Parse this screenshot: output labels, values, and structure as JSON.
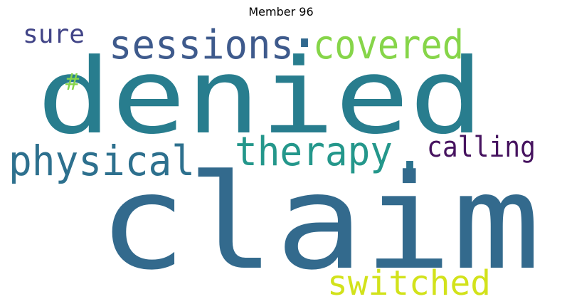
{
  "title": "Member 96",
  "words": [
    {
      "text": "claim",
      "color": "#336a8d"
    },
    {
      "text": "denied",
      "color": "#287d8e"
    },
    {
      "text": "sessions",
      "color": "#3e5a8c"
    },
    {
      "text": "covered",
      "color": "#86d549"
    },
    {
      "text": "physical",
      "color": "#2d708e"
    },
    {
      "text": "therapy",
      "color": "#24978b"
    },
    {
      "text": "calling",
      "color": "#46135f"
    },
    {
      "text": "switched",
      "color": "#d2e21b"
    },
    {
      "text": "sure",
      "color": "#414487"
    },
    {
      "text": "#",
      "color": "#86d549"
    },
    {
      "text": ".",
      "color": "#31688e"
    },
    {
      "text": ".",
      "color": "#2c728e"
    }
  ]
}
